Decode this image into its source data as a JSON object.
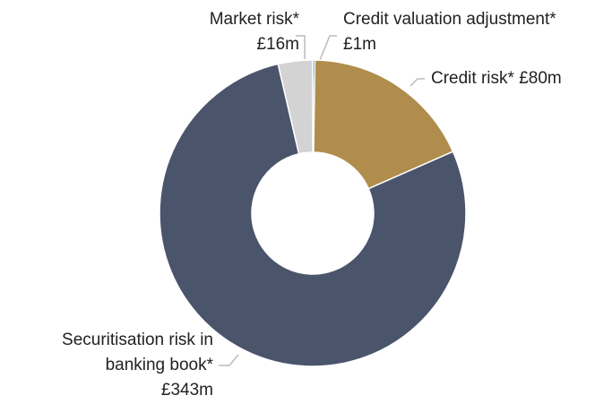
{
  "chart_data": {
    "type": "donut",
    "categories": [
      "Credit valuation adjustment*",
      "Credit risk*",
      "Securitisation risk in banking book*",
      "Market risk*"
    ],
    "values": [
      1,
      80,
      343,
      16
    ],
    "value_labels": [
      "£1m",
      "£80m",
      "£343m",
      "£16m"
    ],
    "colors": [
      "#1b6b73",
      "#b08d4c",
      "#4a546b",
      "#d3d3d3"
    ]
  }
}
